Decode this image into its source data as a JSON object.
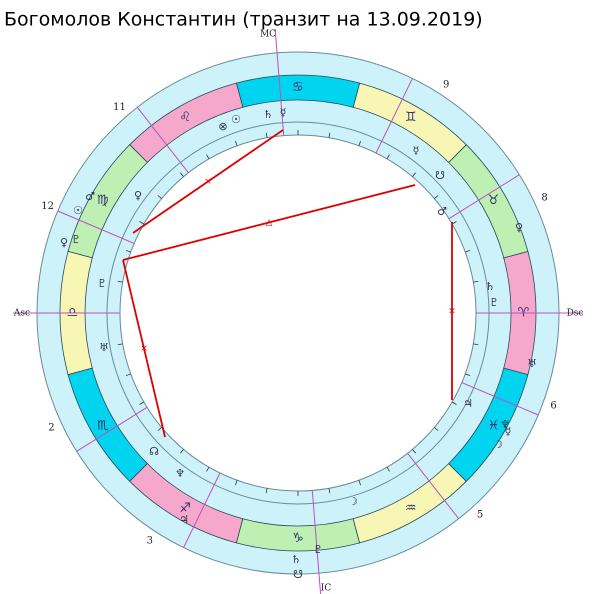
{
  "header": {
    "title": "Богомолов Константин (транзит на 13.09.2019)"
  },
  "angles": {
    "asc": "Asc",
    "dsc": "Dsc",
    "mc": "MC",
    "ic": "IC"
  },
  "houses": [
    "2",
    "3",
    "5",
    "6",
    "8",
    "9",
    "11",
    "12"
  ],
  "signs": [
    "♈",
    "♉",
    "♊",
    "♋",
    "♌",
    "♍",
    "♎",
    "♏",
    "♐",
    "♑",
    "♒",
    "♓"
  ],
  "planets_natal": [
    "⊗",
    "☉",
    "♄",
    "☿",
    "♀",
    "♇",
    "♅",
    "☊",
    "♆",
    "☽",
    "♃",
    "♂",
    "☋",
    "☿",
    "♄",
    "♇"
  ],
  "planets_transit": [
    "♂",
    "☉",
    "♀",
    "♇",
    "♃",
    "♄",
    "☋",
    "♇",
    "♅",
    "♆",
    "☽",
    "♀",
    "☿"
  ],
  "aspects": [
    "×",
    "△",
    "×",
    "×"
  ]
}
